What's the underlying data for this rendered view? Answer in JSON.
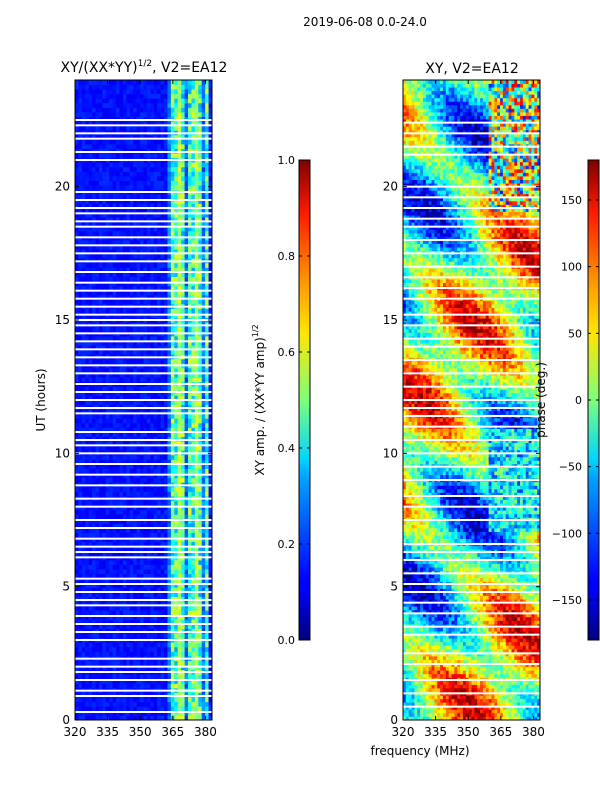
{
  "suptitle": "2019-06-08 0.0-24.0",
  "chart_data": [
    {
      "type": "heatmap",
      "title": "XY/(XX*YY)",
      "title_exponent": "1/2",
      "title_suffix": ", V2=EA12",
      "ylabel": "UT (hours)",
      "xlim": [
        320,
        383
      ],
      "ylim": [
        0,
        24
      ],
      "xticks": [
        320,
        335,
        350,
        365,
        380
      ],
      "yticks": [
        0,
        5,
        10,
        15,
        20
      ],
      "colorbar": {
        "label": "XY amp. / (XX*YY amp)",
        "label_exponent": "1/2",
        "range": [
          0.0,
          1.0
        ],
        "ticks": [
          "0.0",
          "0.2",
          "0.4",
          "0.6",
          "0.8",
          "1.0"
        ],
        "colormap": "jet"
      },
      "gap_rows_hours": [
        0.3,
        0.9,
        1.1,
        1.5,
        1.8,
        2.0,
        2.3,
        3.0,
        3.3,
        3.6,
        3.9,
        4.3,
        4.5,
        4.8,
        5.1,
        5.3,
        6.1,
        6.3,
        6.5,
        6.8,
        7.2,
        7.5,
        8.0,
        8.3,
        8.8,
        9.2,
        9.6,
        10.0,
        10.3,
        10.5,
        10.8,
        11.5,
        11.7,
        12.0,
        12.3,
        12.6,
        13.0,
        13.3,
        13.6,
        13.9,
        14.2,
        14.5,
        14.8,
        15.0,
        15.2,
        15.5,
        15.8,
        16.1,
        16.4,
        16.8,
        17.2,
        17.5,
        17.8,
        18.1,
        18.5,
        18.7,
        19.0,
        19.2,
        19.5,
        19.8,
        21.0,
        21.3,
        21.8,
        22.0,
        22.3,
        22.5
      ],
      "bright_band_MHz": [
        363,
        381
      ]
    },
    {
      "type": "heatmap",
      "title": "XY, V2=EA12",
      "xlabel": "frequency (MHz)",
      "xlim": [
        320,
        383
      ],
      "ylim": [
        0,
        24
      ],
      "xticks": [
        320,
        335,
        350,
        365,
        380
      ],
      "yticks": [
        0,
        5,
        10,
        15,
        20
      ],
      "colorbar": {
        "label": "phase (deg.)",
        "range": [
          -180,
          180
        ],
        "ticks": [
          "−150",
          "−100",
          "−50",
          "0",
          "50",
          "100",
          "150"
        ],
        "tick_values": [
          -150,
          -100,
          -50,
          0,
          50,
          100,
          150
        ],
        "colormap": "jet"
      },
      "gap_rows_hours": [
        0.5,
        1.0,
        1.5,
        2.1,
        2.5,
        3.2,
        3.5,
        4.0,
        4.4,
        4.8,
        5.1,
        5.5,
        6.0,
        6.3,
        6.6,
        7.5,
        8.0,
        8.4,
        9.0,
        9.5,
        10.0,
        10.5,
        11.0,
        11.4,
        11.7,
        12.0,
        12.5,
        13.0,
        13.5,
        14.0,
        14.3,
        14.8,
        15.2,
        15.8,
        16.2,
        16.6,
        17.0,
        17.5,
        18.0,
        18.5,
        18.8,
        19.2,
        19.6,
        20.0,
        21.2,
        21.5,
        22.0,
        22.4
      ]
    }
  ]
}
